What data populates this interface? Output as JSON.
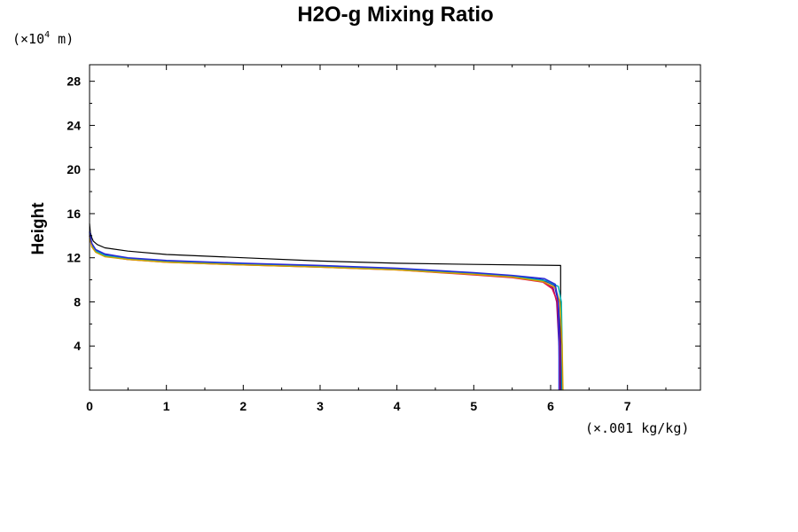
{
  "chart_data": {
    "type": "line",
    "title": "H2O-g Mixing Ratio",
    "ylabel": "Height",
    "y_unit": {
      "prefix": "(×10",
      "exponent": "4",
      "suffix": " m)"
    },
    "x_unit": "(×.001 kg/kg)",
    "xlim": [
      0,
      7.95
    ],
    "ylim": [
      0,
      29.5
    ],
    "x_major_ticks": [
      0,
      1,
      2,
      3,
      4,
      5,
      6,
      7
    ],
    "x_tick_labels": [
      "0",
      "1",
      "2",
      "3",
      "4",
      "5",
      "6",
      "7"
    ],
    "y_major_ticks": [
      4,
      8,
      12,
      16,
      20,
      24,
      28
    ],
    "y_tick_labels": [
      "4",
      "8",
      "12",
      "16",
      "20",
      "24",
      "28"
    ],
    "grid": false,
    "legend": "none",
    "series": [
      {
        "color": "#000000",
        "x": [
          6.13,
          6.13,
          6.13,
          6.13,
          5.0,
          4.0,
          3.0,
          2.0,
          1.0,
          0.5,
          0.2,
          0.1,
          0.05,
          0.03,
          0.01,
          0.0
        ],
        "y": [
          0,
          4,
          8,
          11.3,
          11.4,
          11.5,
          11.7,
          12.0,
          12.3,
          12.6,
          12.9,
          13.2,
          13.5,
          13.8,
          14.3,
          15.1
        ]
      },
      {
        "color": "#1515b0",
        "x": [
          6.14,
          6.13,
          6.1,
          6.05,
          5.9,
          5.5,
          5.0,
          4.0,
          3.0,
          2.0,
          1.0,
          0.5,
          0.2,
          0.08,
          0.03,
          0.0
        ],
        "y": [
          0,
          4,
          8,
          9.5,
          10.0,
          10.35,
          10.6,
          11.0,
          11.25,
          11.45,
          11.7,
          11.95,
          12.3,
          12.7,
          13.2,
          14.3
        ]
      },
      {
        "color": "#800080",
        "x": [
          6.12,
          6.11,
          6.08,
          6.03,
          5.9,
          5.5,
          5.0,
          4.0,
          3.0,
          2.0,
          1.0,
          0.5,
          0.2,
          0.08,
          0.03,
          0.0
        ],
        "y": [
          0,
          4,
          8,
          9.3,
          9.9,
          10.25,
          10.5,
          10.95,
          11.2,
          11.4,
          11.65,
          11.9,
          12.2,
          12.6,
          13.1,
          14.1
        ]
      },
      {
        "color": "#e0104a",
        "x": [
          6.12,
          6.12,
          6.09,
          6.02,
          5.9,
          5.5,
          5.0,
          4.0,
          3.0,
          2.0,
          1.0,
          0.5,
          0.2,
          0.08,
          0.03,
          0.0
        ],
        "y": [
          0,
          4,
          8,
          9.2,
          9.8,
          10.2,
          10.45,
          10.9,
          11.15,
          11.35,
          11.6,
          11.85,
          12.15,
          12.55,
          13.0,
          14.0
        ]
      },
      {
        "color": "#00b4b4",
        "x": [
          6.15,
          6.15,
          6.14,
          6.1,
          5.95,
          5.5,
          5.0,
          4.0,
          3.0,
          2.0,
          1.0,
          0.5,
          0.2,
          0.08,
          0.03,
          0.0
        ],
        "y": [
          0,
          4,
          8,
          9.4,
          9.9,
          10.3,
          10.55,
          10.95,
          11.2,
          11.4,
          11.65,
          11.9,
          12.2,
          12.6,
          13.1,
          14.2
        ]
      },
      {
        "color": "#d4a000",
        "x": [
          6.16,
          6.15,
          6.12,
          6.06,
          5.9,
          5.5,
          5.0,
          4.0,
          3.0,
          2.0,
          1.0,
          0.5,
          0.2,
          0.08,
          0.03,
          0.0
        ],
        "y": [
          0,
          4,
          8,
          9.3,
          9.85,
          10.25,
          10.5,
          10.9,
          11.15,
          11.35,
          11.6,
          11.85,
          12.1,
          12.5,
          13.0,
          14.0
        ]
      },
      {
        "color": "#2a2ad8",
        "x": [
          6.11,
          6.11,
          6.1,
          6.06,
          5.92,
          5.5,
          5.0,
          4.0,
          3.0,
          2.0,
          1.0,
          0.5,
          0.2,
          0.08,
          0.03,
          0.0
        ],
        "y": [
          0,
          4,
          8,
          9.6,
          10.1,
          10.4,
          10.65,
          11.05,
          11.3,
          11.5,
          11.75,
          12.0,
          12.35,
          12.75,
          13.3,
          14.4
        ]
      }
    ]
  }
}
